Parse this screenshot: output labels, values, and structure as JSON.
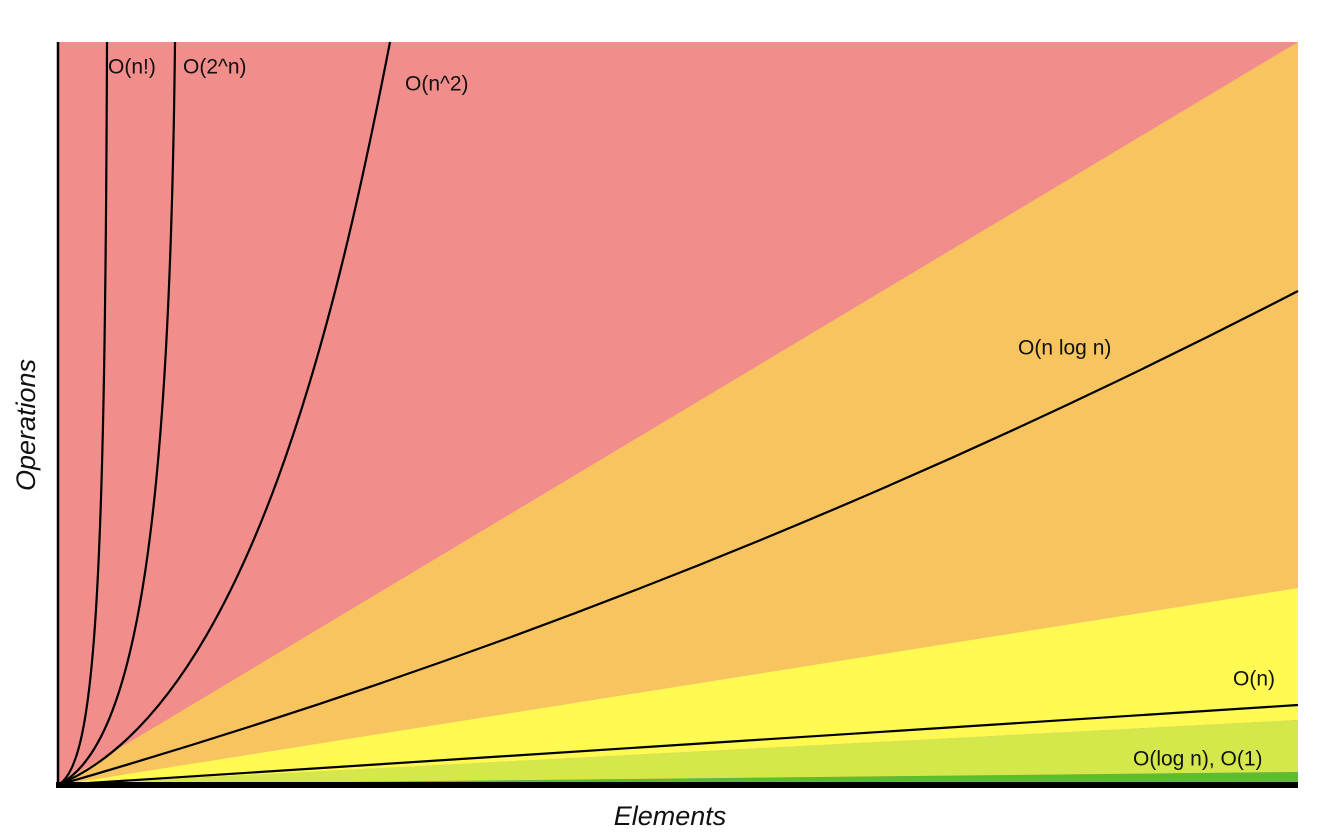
{
  "diagram": {
    "curve_labels": [
      "O(n!)",
      "O(2^n)",
      "O(n^2)",
      "O(n log n)",
      "O(n)",
      "O(log n), O(1)"
    ],
    "x_axis_label": "Elements",
    "y_axis_label": "Operations"
  }
}
